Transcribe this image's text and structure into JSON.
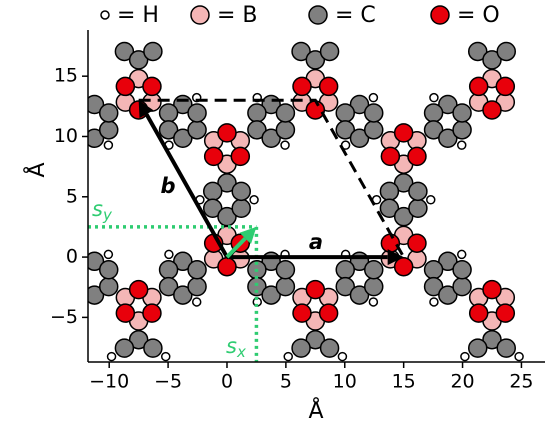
{
  "chart_data": {
    "type": "scatter",
    "x_label": "Å",
    "y_label": "Å",
    "xlim": [
      -11.8,
      27
    ],
    "ylim": [
      -8.7,
      18
    ],
    "xticks": [
      {
        "value": -10,
        "label": "−10"
      },
      {
        "value": -5,
        "label": "−5"
      },
      0,
      5,
      10,
      15,
      20,
      25
    ],
    "yticks": [
      {
        "value": -5,
        "label": "−5"
      },
      0,
      5,
      10,
      15
    ],
    "series": [
      {
        "name": "= C",
        "color": "#808080",
        "size": 9,
        "x": [
          0,
          -1.21,
          -1.21,
          0,
          1.21,
          1.21,
          3.75,
          2.54,
          2.54,
          3.75,
          4.96,
          4.96,
          -3.75,
          -4.96,
          -4.96,
          -3.75,
          -2.54,
          -2.54,
          15,
          13.79,
          13.79,
          15,
          16.21,
          16.21,
          18.75,
          17.54,
          17.54,
          18.75,
          19.96,
          19.96,
          11.25,
          10.04,
          10.04,
          11.25,
          12.46,
          12.46,
          -3.75,
          -4.96,
          -4.96,
          -3.75,
          -2.54,
          -2.54,
          3.75,
          2.54,
          2.54,
          3.75,
          4.96,
          4.96,
          11.25,
          10.04,
          10.04,
          11.25,
          12.46,
          12.46,
          18.75,
          17.54,
          17.54,
          18.75,
          19.96,
          19.96,
          -11.25,
          -11.25,
          -10.04,
          -10.04,
          -11.25,
          -11.25,
          -10.04,
          -10.04,
          -7.5,
          -8.71,
          -6.29,
          7.5,
          6.29,
          8.71,
          22.5,
          21.29,
          23.71,
          -8.71,
          -7.5,
          -6.29,
          6.29,
          7.5,
          8.71,
          21.29,
          22.5,
          23.71
        ],
        "y": [
          6.15,
          5.45,
          4.05,
          3.35,
          4.05,
          5.45,
          -0.35,
          -1.05,
          -2.45,
          -3.15,
          -2.45,
          -1.05,
          -0.35,
          -1.05,
          -2.45,
          -3.15,
          -2.45,
          -1.05,
          6.15,
          5.45,
          4.05,
          3.35,
          4.05,
          5.45,
          -0.35,
          -1.05,
          -2.45,
          -3.15,
          -2.45,
          -1.05,
          -0.35,
          -1.05,
          -2.45,
          -3.15,
          -2.45,
          -1.05,
          12.65,
          11.95,
          10.55,
          9.85,
          10.55,
          11.95,
          12.65,
          11.95,
          10.55,
          9.85,
          10.55,
          11.95,
          12.65,
          11.95,
          10.55,
          9.85,
          10.55,
          11.95,
          12.65,
          11.95,
          10.55,
          9.85,
          10.55,
          11.95,
          12.65,
          9.85,
          10.55,
          11.95,
          -0.35,
          -3.15,
          -2.45,
          -1.05,
          -6.85,
          -7.55,
          -7.55,
          -6.85,
          -7.55,
          -7.55,
          -6.85,
          -7.55,
          -7.55,
          17.05,
          16.35,
          17.05,
          17.05,
          16.35,
          17.05,
          17.05,
          16.35,
          17.05
        ]
      },
      {
        "name": "= B",
        "color": "#f4b6b6",
        "size": 9,
        "x": [
          0,
          -1.13,
          1.13,
          15,
          13.87,
          16.13,
          -7.5,
          -8.63,
          -6.37,
          7.5,
          6.37,
          8.63,
          22.5,
          21.37,
          23.63,
          0,
          1.13,
          -1.13,
          15,
          16.13,
          13.87,
          -7.5,
          -6.37,
          -8.63,
          7.5,
          8.63,
          6.37,
          22.5,
          23.63,
          21.37
        ],
        "y": [
          1.8,
          -0.15,
          -0.15,
          1.8,
          -0.15,
          -0.15,
          14.8,
          12.85,
          12.85,
          14.8,
          12.85,
          12.85,
          14.8,
          12.85,
          12.85,
          7.7,
          9.65,
          9.65,
          7.7,
          9.65,
          9.65,
          -5.3,
          -3.35,
          -3.35,
          -5.3,
          -3.35,
          -3.35,
          -5.3,
          -3.35,
          -3.35
        ]
      },
      {
        "name": "= O",
        "color": "#e8000b",
        "size": 9,
        "x": [
          1.13,
          -1.13,
          0,
          16.13,
          13.87,
          15,
          -6.37,
          -8.63,
          -7.5,
          8.63,
          6.37,
          7.5,
          23.63,
          21.37,
          22.5,
          0,
          -1.13,
          1.13,
          15,
          13.87,
          16.13,
          -7.5,
          -8.63,
          -6.37,
          7.5,
          6.37,
          8.63,
          22.5,
          21.37,
          23.63
        ],
        "y": [
          1.15,
          1.15,
          -0.8,
          1.15,
          1.15,
          -0.8,
          14.15,
          14.15,
          12.2,
          14.15,
          14.15,
          12.2,
          14.15,
          14.15,
          12.2,
          10.3,
          8.35,
          8.35,
          10.3,
          8.35,
          8.35,
          -2.7,
          -4.65,
          -4.65,
          -2.7,
          -4.65,
          -4.65,
          -2.7,
          -4.65,
          -4.65
        ]
      },
      {
        "name": "= H",
        "color": "#ffffff",
        "size": 4,
        "x": [
          -2.3,
          2.3,
          12.7,
          17.3,
          -9.8,
          -5.2,
          5.2,
          9.8,
          20.2,
          24.8,
          4.93,
          2.57,
          19.93,
          17.57,
          -2.57,
          -4.93,
          12.43,
          10.07,
          -10.07,
          -4.93,
          -2.57,
          10.07,
          12.43,
          -10.07,
          2.57,
          4.93,
          17.57,
          19.93
        ],
        "y": [
          4.75,
          4.75,
          4.75,
          4.75,
          -8.25,
          -8.25,
          -8.25,
          -8.25,
          -8.25,
          -8.25,
          0.22,
          -3.72,
          0.22,
          -3.72,
          13.22,
          9.28,
          13.22,
          9.28,
          0.22,
          0.22,
          -3.72,
          0.22,
          -3.72,
          9.28,
          13.22,
          9.28,
          13.22,
          9.28
        ]
      }
    ],
    "legend_order": [
      3,
      1,
      0,
      2
    ],
    "vectors": [
      {
        "label": "a",
        "x": 15,
        "y": 0
      },
      {
        "label": "b",
        "x": -7.5,
        "y": 13
      }
    ],
    "vector_color": "#000000",
    "shift": {
      "x": 2.5,
      "y": 2.5,
      "color": "#2ecc71",
      "x_label": {
        "main": "s",
        "sub": "x"
      },
      "y_label": {
        "main": "s",
        "sub": "y"
      }
    }
  }
}
